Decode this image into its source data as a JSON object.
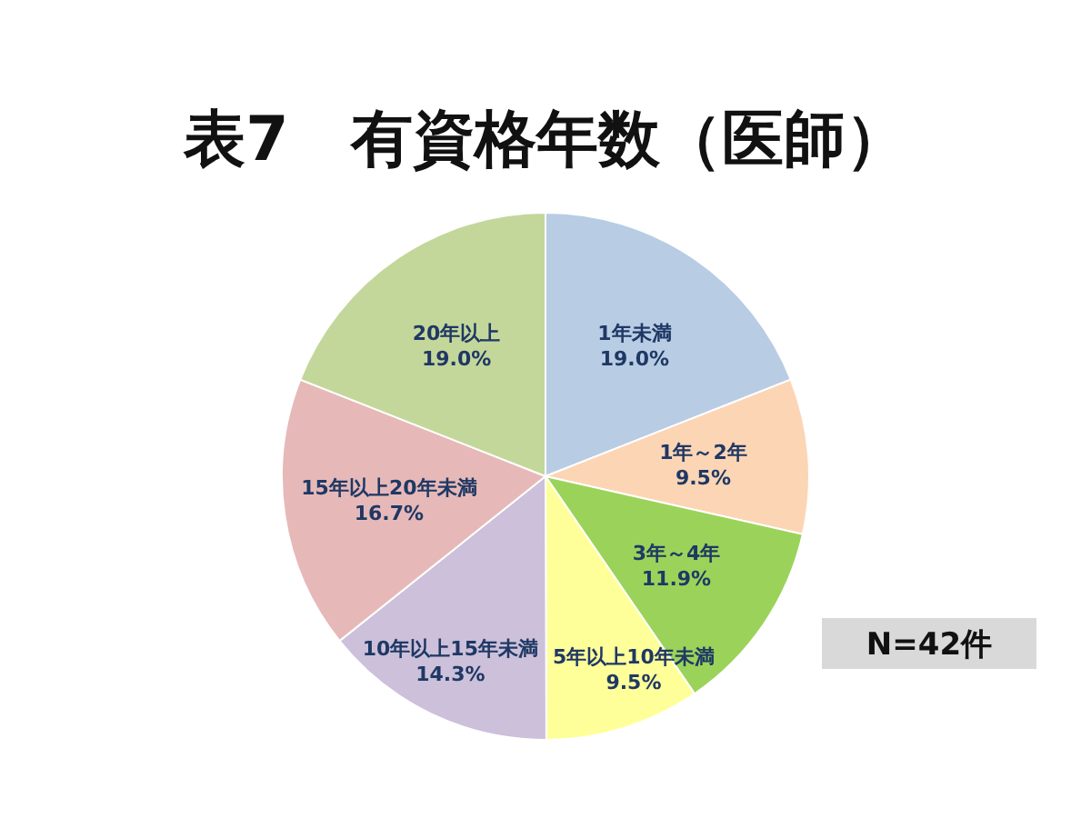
{
  "chart_data": {
    "type": "pie",
    "title": "表7　有資格年数（医師）",
    "categories": [
      "1年未満",
      "1年～2年",
      "3年～4年",
      "5年以上10年未満",
      "10年以上15年未満",
      "15年以上20年未満",
      "20年以上"
    ],
    "values": [
      19.0,
      9.5,
      11.9,
      9.5,
      14.3,
      16.7,
      19.0
    ],
    "value_labels": [
      "19.0%",
      "9.5%",
      "11.9%",
      "9.5%",
      "14.3%",
      "16.7%",
      "19.0%"
    ],
    "colors": [
      "#b8cce4",
      "#fcd5b5",
      "#9bd35a",
      "#ffff99",
      "#ccc0da",
      "#e6b9b8",
      "#c4d79b"
    ],
    "annotations": [
      "N=42件"
    ]
  }
}
